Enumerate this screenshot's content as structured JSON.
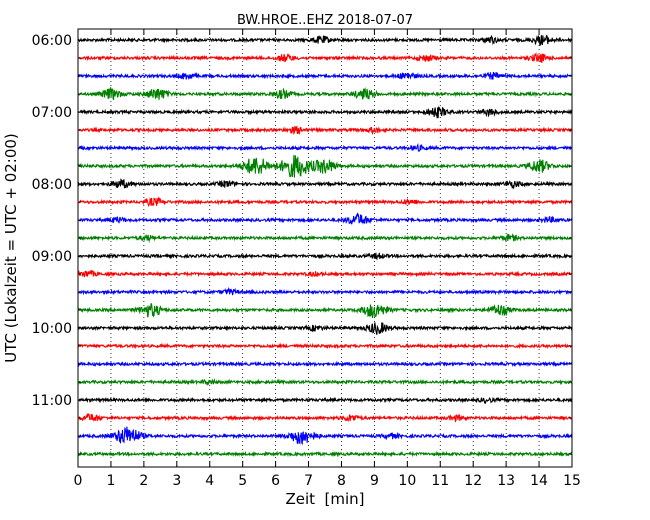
{
  "chart_data": {
    "type": "line",
    "title": "BW.HROE..EHZ 2018-07-07",
    "xlabel": "Zeit  [min]",
    "ylabel": "UTC (Lokalzeit = UTC + 02:00)",
    "xlim": [
      0,
      15
    ],
    "x_ticks": [
      "0",
      "1",
      "2",
      "3",
      "4",
      "5",
      "6",
      "7",
      "8",
      "9",
      "10",
      "11",
      "12",
      "13",
      "14",
      "15"
    ],
    "y_tick_labels": [
      "06:00",
      "07:00",
      "08:00",
      "09:00",
      "10:00",
      "11:00"
    ],
    "grid": "vertical dotted at each minute",
    "trace_interval_minutes": 15,
    "trace_start": "06:00",
    "trace_colors": [
      "#000000",
      "#ff0000",
      "#0000ff",
      "#008000"
    ],
    "traces": [
      {
        "start": "06:00",
        "color": "#000000",
        "bursts": [
          [
            7.4,
            0.6
          ],
          [
            14.1,
            0.8
          ],
          [
            12.5,
            0.5
          ]
        ]
      },
      {
        "start": "06:15",
        "color": "#ff0000",
        "bursts": [
          [
            6.3,
            0.6
          ],
          [
            14.0,
            0.7
          ],
          [
            10.6,
            0.5
          ]
        ]
      },
      {
        "start": "06:30",
        "color": "#0000ff",
        "bursts": [
          [
            3.3,
            0.5
          ],
          [
            10.0,
            0.6
          ],
          [
            12.6,
            0.5
          ]
        ]
      },
      {
        "start": "06:45",
        "color": "#008000",
        "bursts": [
          [
            1.0,
            0.9
          ],
          [
            2.4,
            1.0
          ],
          [
            8.7,
            0.9
          ],
          [
            6.2,
            0.7
          ]
        ]
      },
      {
        "start": "07:00",
        "color": "#000000",
        "bursts": [
          [
            10.9,
            0.9
          ],
          [
            12.5,
            0.5
          ]
        ]
      },
      {
        "start": "07:15",
        "color": "#ff0000",
        "bursts": [
          [
            6.6,
            0.5
          ],
          [
            9.0,
            0.4
          ]
        ]
      },
      {
        "start": "07:30",
        "color": "#0000ff",
        "bursts": [
          [
            10.3,
            0.4
          ]
        ]
      },
      {
        "start": "07:45",
        "color": "#008000",
        "bursts": [
          [
            5.4,
            1.6
          ],
          [
            6.6,
            2.0
          ],
          [
            7.5,
            1.2
          ],
          [
            14.0,
            1.1
          ]
        ]
      },
      {
        "start": "08:00",
        "color": "#000000",
        "bursts": [
          [
            1.3,
            0.7
          ],
          [
            4.5,
            0.5
          ],
          [
            13.2,
            0.5
          ]
        ]
      },
      {
        "start": "08:15",
        "color": "#ff0000",
        "bursts": [
          [
            2.3,
            0.6
          ],
          [
            10.1,
            0.4
          ]
        ]
      },
      {
        "start": "08:30",
        "color": "#0000ff",
        "bursts": [
          [
            8.5,
            1.0
          ],
          [
            1.2,
            0.4
          ],
          [
            14.3,
            0.4
          ]
        ]
      },
      {
        "start": "08:45",
        "color": "#008000",
        "bursts": [
          [
            2.1,
            0.4
          ],
          [
            13.1,
            0.5
          ]
        ]
      },
      {
        "start": "09:00",
        "color": "#000000",
        "bursts": [
          [
            9.1,
            0.4
          ]
        ]
      },
      {
        "start": "09:15",
        "color": "#ff0000",
        "bursts": [
          [
            0.3,
            0.5
          ],
          [
            7.2,
            0.3
          ]
        ]
      },
      {
        "start": "09:30",
        "color": "#0000ff",
        "bursts": [
          [
            4.6,
            0.4
          ]
        ]
      },
      {
        "start": "09:45",
        "color": "#008000",
        "bursts": [
          [
            2.2,
            1.1
          ],
          [
            9.0,
            1.3
          ],
          [
            12.8,
            0.9
          ]
        ]
      },
      {
        "start": "10:00",
        "color": "#000000",
        "bursts": [
          [
            9.1,
            1.0
          ],
          [
            7.2,
            0.4
          ]
        ]
      },
      {
        "start": "10:15",
        "color": "#ff0000",
        "bursts": []
      },
      {
        "start": "10:30",
        "color": "#0000ff",
        "bursts": []
      },
      {
        "start": "10:45",
        "color": "#008000",
        "bursts": [
          [
            4.0,
            0.3
          ]
        ]
      },
      {
        "start": "11:00",
        "color": "#000000",
        "bursts": [
          [
            12.4,
            0.3
          ]
        ]
      },
      {
        "start": "11:15",
        "color": "#ff0000",
        "bursts": [
          [
            0.4,
            0.6
          ],
          [
            8.3,
            0.5
          ],
          [
            11.5,
            0.4
          ]
        ]
      },
      {
        "start": "11:30",
        "color": "#0000ff",
        "bursts": [
          [
            1.5,
            1.6
          ],
          [
            6.8,
            1.4
          ],
          [
            9.5,
            0.4
          ]
        ]
      },
      {
        "start": "11:45",
        "color": "#008000",
        "bursts": []
      }
    ]
  }
}
